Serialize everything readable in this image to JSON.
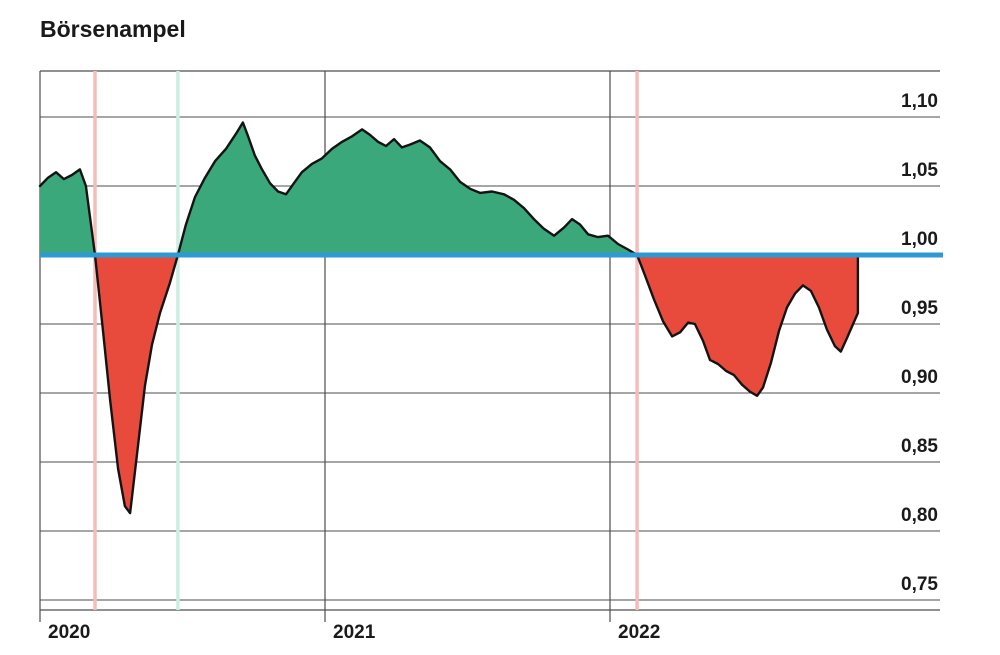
{
  "title": "Börsenampel",
  "colors": {
    "area_green": "#3aa87b",
    "area_red": "#e84b3c",
    "baseline_blue": "#2d9ad3",
    "signal_red_line": "#f6bcb8",
    "signal_green_line": "#cceee1",
    "grid": "#4d4d4d",
    "curve_stroke": "#141414",
    "text": "#1a1a1a",
    "background": "#ffffff"
  },
  "chart_data": {
    "type": "area",
    "title": "Börsenampel",
    "baseline": 1.0,
    "x_range": [
      2020.0,
      2023.16
    ],
    "ylim": [
      0.74,
      1.13
    ],
    "grid": true,
    "legend": "none",
    "y_ticks": [
      {
        "value": 1.1,
        "label": "1,10"
      },
      {
        "value": 1.05,
        "label": "1,05"
      },
      {
        "value": 1.0,
        "label": "1,00"
      },
      {
        "value": 0.95,
        "label": "0,95"
      },
      {
        "value": 0.9,
        "label": "0,90"
      },
      {
        "value": 0.85,
        "label": "0,85"
      },
      {
        "value": 0.8,
        "label": "0,80"
      },
      {
        "value": 0.75,
        "label": "0,75"
      }
    ],
    "x_ticks": [
      {
        "value": 2020,
        "label": "2020"
      },
      {
        "value": 2021,
        "label": "2021"
      },
      {
        "value": 2022,
        "label": "2022"
      }
    ],
    "signal_lines": [
      {
        "t": 2020.193,
        "kind": "red"
      },
      {
        "t": 2020.484,
        "kind": "green"
      },
      {
        "t": 2022.095,
        "kind": "red"
      }
    ],
    "points": [
      [
        2020.0,
        1.05
      ],
      [
        2020.028,
        1.056
      ],
      [
        2020.056,
        1.06
      ],
      [
        2020.084,
        1.055
      ],
      [
        2020.112,
        1.058
      ],
      [
        2020.14,
        1.062
      ],
      [
        2020.161,
        1.05
      ],
      [
        2020.193,
        1.0
      ],
      [
        2020.221,
        0.945
      ],
      [
        2020.246,
        0.895
      ],
      [
        2020.274,
        0.845
      ],
      [
        2020.298,
        0.818
      ],
      [
        2020.316,
        0.813
      ],
      [
        2020.34,
        0.855
      ],
      [
        2020.368,
        0.905
      ],
      [
        2020.393,
        0.935
      ],
      [
        2020.421,
        0.958
      ],
      [
        2020.456,
        0.98
      ],
      [
        2020.484,
        1.0
      ],
      [
        2020.512,
        1.022
      ],
      [
        2020.544,
        1.042
      ],
      [
        2020.579,
        1.056
      ],
      [
        2020.614,
        1.068
      ],
      [
        2020.653,
        1.077
      ],
      [
        2020.688,
        1.088
      ],
      [
        2020.712,
        1.096
      ],
      [
        2020.73,
        1.086
      ],
      [
        2020.754,
        1.072
      ],
      [
        2020.779,
        1.062
      ],
      [
        2020.807,
        1.052
      ],
      [
        2020.835,
        1.046
      ],
      [
        2020.863,
        1.044
      ],
      [
        2020.891,
        1.052
      ],
      [
        2020.919,
        1.06
      ],
      [
        2020.954,
        1.066
      ],
      [
        2020.989,
        1.07
      ],
      [
        2021.025,
        1.077
      ],
      [
        2021.06,
        1.082
      ],
      [
        2021.095,
        1.086
      ],
      [
        2021.13,
        1.091
      ],
      [
        2021.158,
        1.087
      ],
      [
        2021.186,
        1.082
      ],
      [
        2021.214,
        1.079
      ],
      [
        2021.242,
        1.084
      ],
      [
        2021.27,
        1.078
      ],
      [
        2021.298,
        1.08
      ],
      [
        2021.333,
        1.083
      ],
      [
        2021.368,
        1.078
      ],
      [
        2021.404,
        1.068
      ],
      [
        2021.439,
        1.062
      ],
      [
        2021.474,
        1.053
      ],
      [
        2021.509,
        1.048
      ],
      [
        2021.544,
        1.045
      ],
      [
        2021.586,
        1.046
      ],
      [
        2021.628,
        1.044
      ],
      [
        2021.663,
        1.04
      ],
      [
        2021.698,
        1.034
      ],
      [
        2021.733,
        1.026
      ],
      [
        2021.768,
        1.019
      ],
      [
        2021.804,
        1.014
      ],
      [
        2021.839,
        1.02
      ],
      [
        2021.867,
        1.026
      ],
      [
        2021.895,
        1.022
      ],
      [
        2021.923,
        1.015
      ],
      [
        2021.958,
        1.013
      ],
      [
        2021.993,
        1.014
      ],
      [
        2022.028,
        1.008
      ],
      [
        2022.063,
        1.004
      ],
      [
        2022.095,
        1.0
      ],
      [
        2022.123,
        0.985
      ],
      [
        2022.154,
        0.968
      ],
      [
        2022.186,
        0.952
      ],
      [
        2022.218,
        0.941
      ],
      [
        2022.246,
        0.944
      ],
      [
        2022.274,
        0.951
      ],
      [
        2022.298,
        0.95
      ],
      [
        2022.326,
        0.938
      ],
      [
        2022.351,
        0.924
      ],
      [
        2022.379,
        0.921
      ],
      [
        2022.407,
        0.916
      ],
      [
        2022.435,
        0.913
      ],
      [
        2022.463,
        0.906
      ],
      [
        2022.491,
        0.901
      ],
      [
        2022.516,
        0.898
      ],
      [
        2022.537,
        0.904
      ],
      [
        2022.565,
        0.922
      ],
      [
        2022.593,
        0.945
      ],
      [
        2022.621,
        0.962
      ],
      [
        2022.649,
        0.972
      ],
      [
        2022.677,
        0.978
      ],
      [
        2022.705,
        0.974
      ],
      [
        2022.733,
        0.962
      ],
      [
        2022.761,
        0.946
      ],
      [
        2022.789,
        0.934
      ],
      [
        2022.81,
        0.93
      ],
      [
        2022.832,
        0.94
      ],
      [
        2022.853,
        0.95
      ],
      [
        2022.87,
        0.958
      ]
    ]
  }
}
